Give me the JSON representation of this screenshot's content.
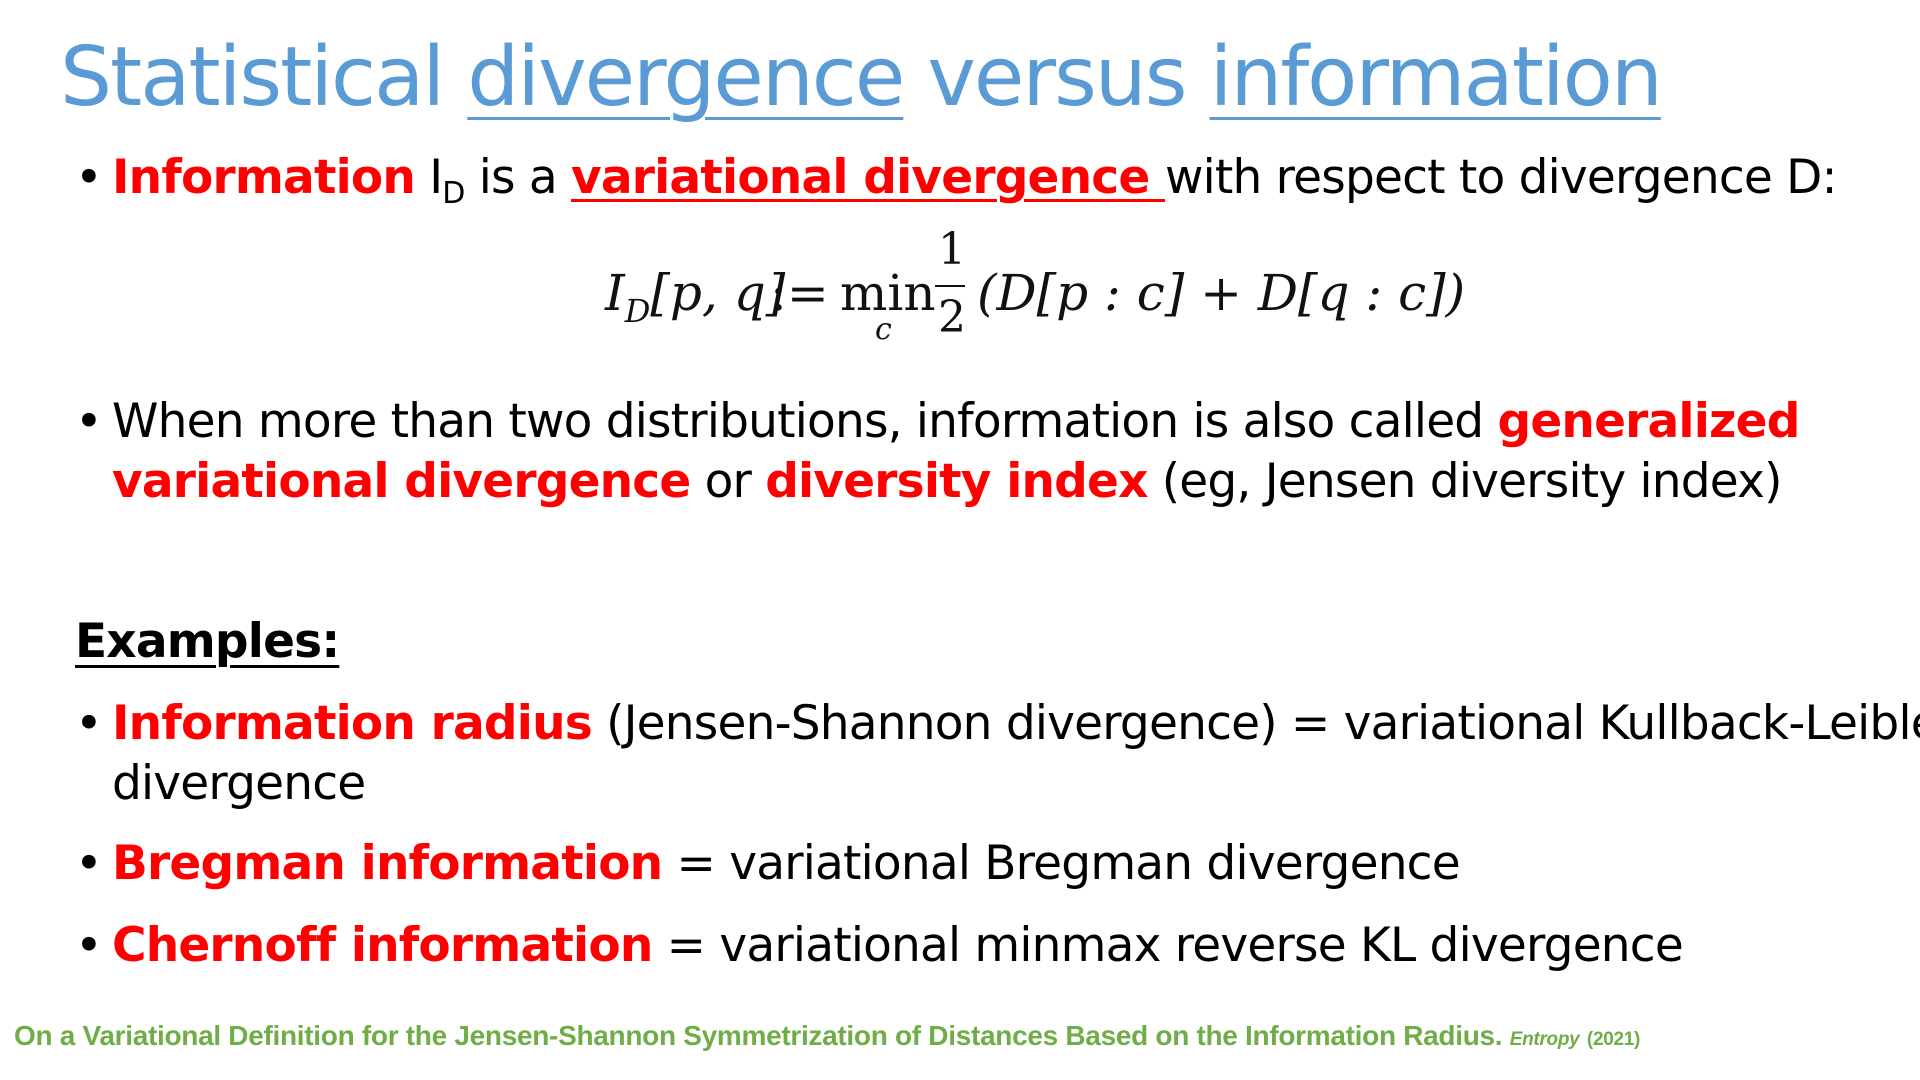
{
  "title": {
    "part1": "Statistical ",
    "part2": "divergence",
    "part3": " versus ",
    "part4": "information"
  },
  "bullet1": {
    "bold_red": "Information",
    "symbol": " I",
    "symbol_sub": "D",
    "mid": " is a ",
    "link": "variational divergence ",
    "rest": "with respect to divergence D:"
  },
  "formula": {
    "lhs_I": "I",
    "lhs_sub": "D",
    "lhs_args": "[p, q]",
    "assign": ":=",
    "min": "min",
    "min_sub": "c",
    "frac_num": "1",
    "frac_den": "2",
    "rhs": "(D[p : c] + D[q : c])"
  },
  "bullet2": {
    "line1_plain": "When more than two distributions, information is also called ",
    "line1_red": "generalized",
    "line2_red1": "variational divergence",
    "line2_mid": " or ",
    "line2_red2": "diversity index",
    "line2_rest": "  (eg, Jensen diversity index)"
  },
  "examples_heading": "Examples:",
  "examples": [
    {
      "bold_red": "Information radius",
      "rest": " (Jensen-Shannon divergence) = variational Kullback-Leibler",
      "cont": "divergence"
    },
    {
      "bold_red": "Bregman information",
      "rest": " = variational Bregman divergence"
    },
    {
      "bold_red": "Chernoff information",
      "rest": " = variational minmax reverse KL divergence"
    }
  ],
  "citation": {
    "text": "On a Variational Definition for the Jensen-Shannon Symmetrization of Distances Based on the Information Radius.",
    "journal": "Entropy",
    "year": "(2021)"
  },
  "bullet_glyph": "•",
  "colors": {
    "title": "#5b9bd5",
    "emphasis": "#ff0000",
    "citation": "#70ad47"
  }
}
